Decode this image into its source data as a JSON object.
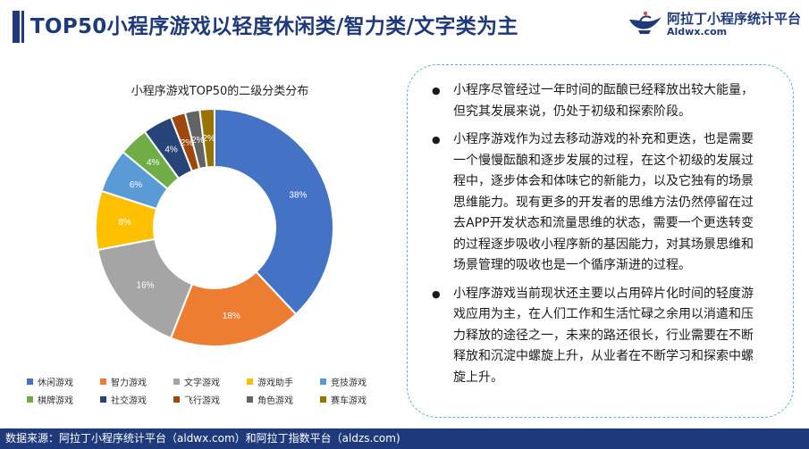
{
  "header": {
    "title": "TOP50小程序游戏以轻度休闲类/智力类/文字类为主",
    "logo_name": "阿拉丁小程序统计平台",
    "logo_domain": "Aldwx.com"
  },
  "chart_data": {
    "type": "pie",
    "subtype": "donut",
    "title": "小程序游戏TOP50的二级分类分布",
    "categories": [
      "休闲游戏",
      "智力游戏",
      "文字游戏",
      "游戏助手",
      "竞技游戏",
      "棋牌游戏",
      "社交游戏",
      "飞行游戏",
      "角色游戏",
      "赛车游戏"
    ],
    "values": [
      38,
      18,
      16,
      8,
      6,
      4,
      4,
      2,
      2,
      2
    ],
    "labels": [
      "38%",
      "18%",
      "16%",
      "8%",
      "6%",
      "4%",
      "4%",
      "2%",
      "2%",
      "2%"
    ],
    "colors": [
      "#4472c4",
      "#ed7d31",
      "#a5a5a5",
      "#ffc000",
      "#5b9bd5",
      "#70ad47",
      "#264478",
      "#9e480e",
      "#636363",
      "#997300"
    ],
    "unit": "%",
    "legend_position": "bottom"
  },
  "notes": [
    "小程序尽管经过一年时间的酝酿已经释放出较大能量，但究其发展来说，仍处于初级和探索阶段。",
    "小程序游戏作为过去移动游戏的补充和更迭，也是需要一个慢慢酝酿和逐步发展的过程，在这个初级的发展过程中，逐步体会和体味它的新能力，以及它独有的场景思维能力。现有更多的开发者的思维方法仍然停留在过去APP开发状态和流量思维的状态，需要一个更迭转变的过程逐步吸收小程序新的基因能力，对其场景思维和场景管理的吸收也是一个循序渐进的过程。",
    "小程序游戏当前现状还主要以占用碎片化时间的轻度游戏应用为主，在人们工作和生活忙碌之余用以消遣和压力释放的途径之一，未来的路还很长，行业需要在不断释放和沉淀中螺旋上升，从业者在不断学习和探索中螺旋上升。"
  ],
  "footer": {
    "source": "数据来源：阿拉丁小程序统计平台（aldwx.com）和阿拉丁指数平台（aldzs.com)"
  }
}
